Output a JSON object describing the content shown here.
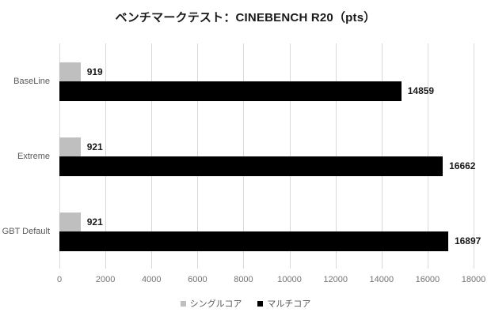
{
  "chart_data": {
    "type": "bar",
    "orientation": "horizontal",
    "title": "ベンチマークテスト：CINEBENCH R20（pts）",
    "categories": [
      "BaseLine",
      "Extreme",
      "GBT Default"
    ],
    "series": [
      {
        "name": "シングルコア",
        "color": "#bfbfbf",
        "values": [
          919,
          921,
          921
        ]
      },
      {
        "name": "マルチコア",
        "color": "#000000",
        "values": [
          14859,
          16662,
          16897
        ]
      }
    ],
    "xlabel": "",
    "ylabel": "",
    "xlim": [
      0,
      18000
    ],
    "xticks": [
      0,
      2000,
      4000,
      6000,
      8000,
      10000,
      12000,
      14000,
      16000,
      18000
    ],
    "grid": true,
    "legend_position": "bottom",
    "colors": {
      "gridline": "#d9d9d9",
      "tick_text": "#737373",
      "category_text": "#595959",
      "value_text": "#1a1a1a",
      "title_text": "#1a1a1a"
    }
  }
}
